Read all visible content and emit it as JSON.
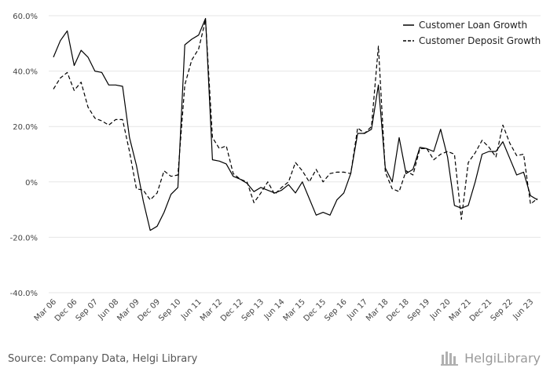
{
  "source": "Source: Company Data, Helgi Library",
  "logo": {
    "text": "HelgiLibrary",
    "icon": "library-bars-icon"
  },
  "colors": {
    "grid": "#e6e6e6",
    "line": "#000000",
    "text": "#444444"
  },
  "chart_data": {
    "type": "line",
    "yticks": [
      "60.0%",
      "40.0%",
      "20.0%",
      "0%",
      "-20.0%",
      "-40.0%"
    ],
    "ylim": [
      -40,
      60
    ],
    "xlabels": [
      "Mar 06",
      "Dec 06",
      "Sep 07",
      "Jun 08",
      "Mar 09",
      "Dec 09",
      "Sep 10",
      "Jun 11",
      "Mar 12",
      "Dec 12",
      "Sep 13",
      "Jun 14",
      "Mar 15",
      "Dec 15",
      "Sep 16",
      "Jun 17",
      "Mar 18",
      "Dec 18",
      "Sep 19",
      "Jun 20",
      "Mar 21",
      "Dec 21",
      "Sep 22",
      "Jun 23"
    ],
    "legend_position": "top-right",
    "grid": true,
    "series": [
      {
        "name": "Customer Loan Growth",
        "dash": "solid",
        "values": [
          45,
          51,
          54.5,
          42,
          47.5,
          45,
          40,
          39.5,
          35,
          35,
          34.5,
          16,
          6,
          -7,
          -17.5,
          -16,
          -11,
          -4.5,
          -2,
          49.5,
          51.5,
          53,
          59,
          8,
          7.5,
          6.5,
          2,
          1,
          -0.5,
          -3.5,
          -2,
          -3,
          -4,
          -3,
          -1,
          -4,
          0,
          -6,
          -12,
          -11,
          -12,
          -6.5,
          -4,
          3,
          17.5,
          17.5,
          19,
          35,
          5,
          0,
          16,
          3,
          4.5,
          12.5,
          12,
          11,
          19,
          9,
          -8.5,
          -9.5,
          -8.5,
          0,
          10,
          11,
          11,
          14.5,
          8.5,
          2.5,
          3.5,
          -5,
          -6.5
        ]
      },
      {
        "name": "Customer Deposit Growth",
        "dash": "dashed",
        "values": [
          33.5,
          37.5,
          39.5,
          33,
          36,
          27,
          23,
          22,
          20.5,
          22.5,
          22.5,
          11,
          -2.5,
          -3,
          -6.5,
          -4,
          4,
          2,
          2.5,
          35,
          44,
          48,
          58.5,
          16,
          12,
          13,
          3,
          1,
          0,
          -7.5,
          -4,
          0,
          -4.5,
          -2,
          0,
          7,
          4,
          0,
          4.5,
          0,
          3,
          3.5,
          3.5,
          3,
          19.5,
          17.5,
          20,
          49,
          3.5,
          -2.5,
          -3.5,
          4,
          2.5,
          12,
          12,
          8,
          10,
          11,
          10,
          -13.5,
          7,
          10.5,
          15,
          12.5,
          9,
          20.5,
          14,
          9.5,
          10,
          -8,
          -6
        ]
      }
    ]
  }
}
